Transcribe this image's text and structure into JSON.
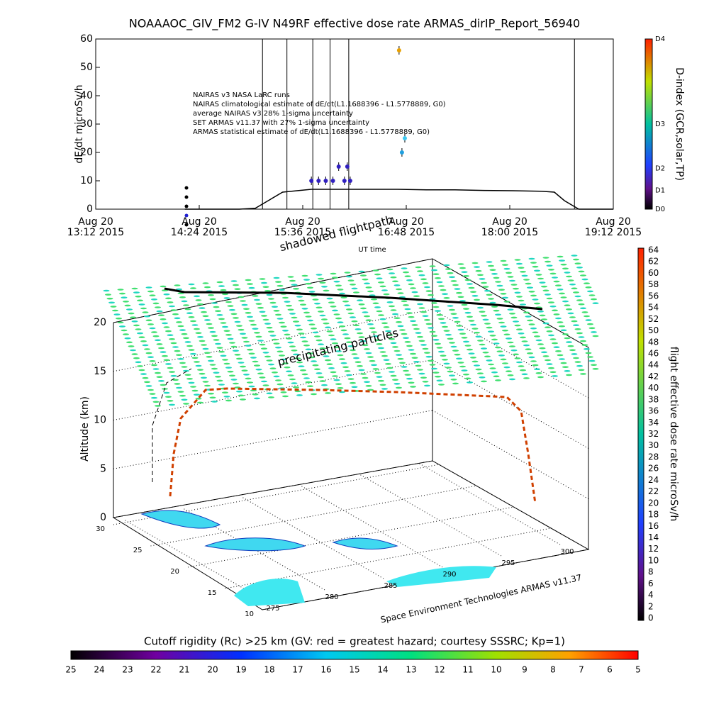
{
  "chart_data": {
    "type": "line",
    "title": "NOAAAOC_GIV_FM2 G-IV    N49RF   effective dose rate ARMAS_dirIP_Report_56940",
    "y_label": "dE/dt microSv/h",
    "x_label": "UT time",
    "xlim": [
      0,
      360
    ],
    "xticks": [
      {
        "value": 0,
        "label": "Aug 20\n13:12 2015"
      },
      {
        "value": 72,
        "label": "Aug 20\n14:24 2015"
      },
      {
        "value": 144,
        "label": "Aug 20\n15:36 2015"
      },
      {
        "value": 216,
        "label": "Aug 20\n16:48 2015"
      },
      {
        "value": 288,
        "label": "Aug 20\n18:00 2015"
      },
      {
        "value": 360,
        "label": "Aug 20\n19:12 2015"
      }
    ],
    "ylim": [
      0,
      60
    ],
    "yticks": [
      0,
      10,
      20,
      30,
      40,
      50,
      60
    ],
    "legend": [
      "NAIRAS v3 NASA LaRC runs",
      "NAIRAS climatological estimate of dE/dt(L1.1688396 - L1.5778889, G0)",
      "average NAIRAS v3 28% 1-sigma uncertainty",
      "SET ARMAS v11.37 with 27% 1-sigma uncertainty",
      "ARMAS statistical estimate of dE/dt(L1.1688396 - L1.5778889, G0)"
    ],
    "vertical_lines": [
      116,
      133,
      151,
      163,
      176,
      333
    ],
    "series": [
      {
        "name": "NAIRAS v3 NASA LaRC runs",
        "color": "#000000",
        "x": [
          62,
          80,
          100,
          111,
          120,
          130,
          140,
          150,
          170,
          190,
          210,
          230,
          250,
          270,
          290,
          310,
          319,
          326,
          336,
          350,
          360
        ],
        "values": [
          0,
          0,
          0,
          0.3,
          3,
          6,
          6.5,
          7,
          7,
          7,
          7,
          6.8,
          6.8,
          6.6,
          6.5,
          6.3,
          6,
          3,
          0,
          0,
          0
        ]
      },
      {
        "name": "SET ARMAS v11.37 with 27% 1-sigma uncertainty",
        "color": "#3020c0",
        "x": [
          150,
          155,
          160,
          165,
          169,
          173,
          175,
          177,
          211,
          213,
          215
        ],
        "values": [
          10,
          10,
          10,
          10,
          15,
          10,
          15,
          10,
          56,
          20,
          25
        ],
        "point_colors": [
          "#3020c0",
          "#3020c0",
          "#3020c0",
          "#3020c0",
          "#3020c0",
          "#3020c0",
          "#3020c0",
          "#3020c0",
          "#e8a000",
          "#20a0e0",
          "#40c8f0"
        ]
      }
    ],
    "dindex_bar": {
      "label": "D-index (GCR,solar,TP)",
      "tick_labels": [
        "D0",
        "D1",
        "D2",
        "D3",
        "D4"
      ]
    },
    "panel3d": {
      "annotations": [
        "shadowed flightpath",
        "precipitating particles"
      ],
      "z_label": "Altitude (km)",
      "zticks": [
        0,
        5,
        10,
        15,
        20
      ],
      "lat_ticks": [
        10,
        15,
        20,
        25,
        30
      ],
      "lon_ticks": [
        275,
        280,
        285,
        290,
        295,
        300
      ],
      "credit": "Space Environment Technologies ARMAS v11.37"
    },
    "dose_bar": {
      "label": "flight effective dose rate microSv/h",
      "ticks": [
        0,
        2,
        4,
        6,
        8,
        10,
        12,
        14,
        16,
        18,
        20,
        22,
        24,
        26,
        28,
        30,
        32,
        34,
        36,
        38,
        40,
        42,
        44,
        46,
        48,
        50,
        52,
        54,
        56,
        58,
        60,
        62,
        64
      ]
    },
    "rigidity_bar": {
      "label": "Cutoff rigidity (Rc) >25 km (GV: red = greatest hazard; courtesy SSSRC; Kp=1)",
      "ticks": [
        25,
        24,
        23,
        22,
        21,
        20,
        19,
        18,
        17,
        16,
        15,
        14,
        13,
        12,
        11,
        10,
        9,
        8,
        7,
        6,
        5
      ]
    }
  }
}
